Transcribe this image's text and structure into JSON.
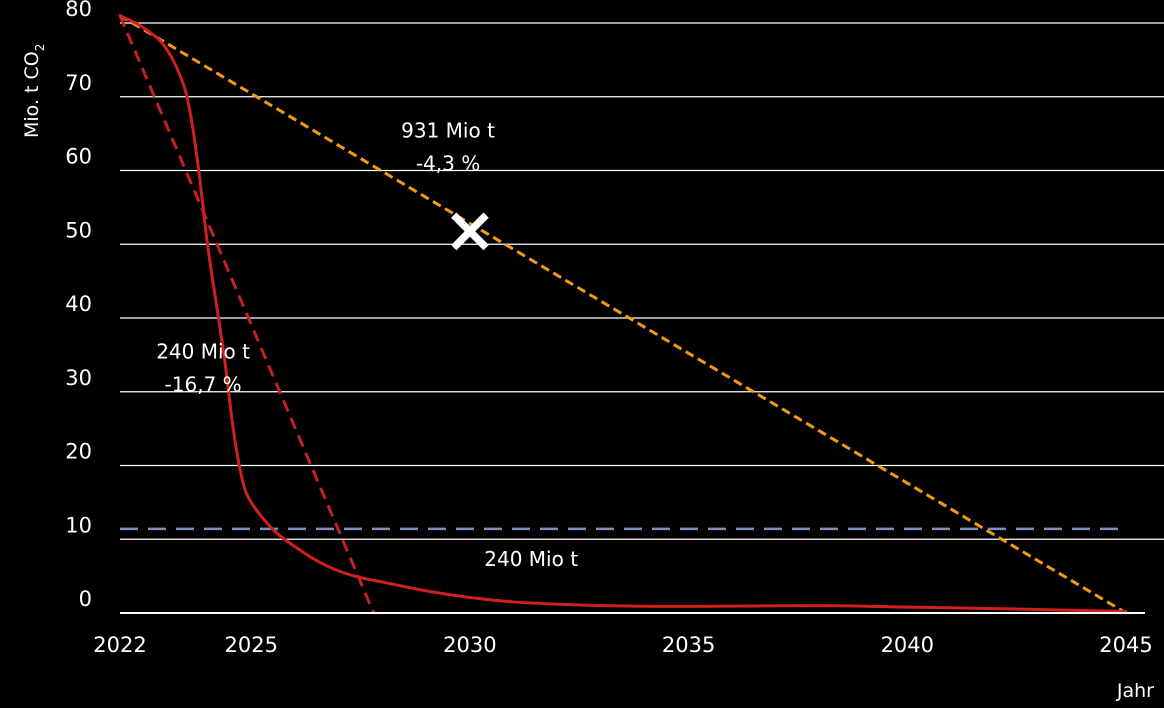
{
  "chart_data": {
    "type": "line",
    "xlabel": "Jahr",
    "ylabel": "Mio. t CO",
    "ylabel_subscript": "2",
    "xlim": [
      2022,
      2045
    ],
    "ylim": [
      0,
      80
    ],
    "xticks": [
      "2022",
      "2025",
      "2030",
      "2035",
      "2040",
      "2045"
    ],
    "yticks": [
      "0",
      "10",
      "20",
      "30",
      "40",
      "50",
      "60",
      "70",
      "80"
    ],
    "grid": "horizontal",
    "series": [
      {
        "style": "solid",
        "color": "#d01f1f",
        "x": [
          2022,
          2022.5,
          2023,
          2023.4,
          2023.6,
          2023.8,
          2024,
          2024.2,
          2024.4,
          2024.6,
          2024.8,
          2025,
          2025.5,
          2026,
          2026.5,
          2027,
          2027.5,
          2028,
          2029,
          2030,
          2031,
          2032,
          2033,
          2035,
          2038,
          2040,
          2042,
          2045
        ],
        "y": [
          81,
          79.5,
          77,
          72.5,
          68,
          60,
          50,
          42,
          34,
          24.5,
          18,
          15,
          11.3,
          9,
          7.1,
          5.7,
          4.8,
          4.2,
          3,
          2.1,
          1.5,
          1.2,
          1,
          0.9,
          1,
          0.8,
          0.6,
          0.2
        ]
      },
      {
        "style": "dashed",
        "color": "#c42222",
        "x": [
          2022,
          2027.8
        ],
        "y": [
          81,
          0
        ]
      },
      {
        "style": "dashed",
        "color": "#f29a12",
        "x": [
          2022,
          2045
        ],
        "y": [
          81,
          0
        ]
      },
      {
        "style": "dashed",
        "color": "#7e8ec4",
        "x": [
          2022,
          2045
        ],
        "y": [
          11.4,
          11.4
        ]
      }
    ],
    "marker": {
      "symbol": "×",
      "x": 2030,
      "y": 52
    },
    "annotations": [
      {
        "lines": [
          "931 Mio t",
          "-4,3 %"
        ],
        "x": 2029.5,
        "y": 64.5
      },
      {
        "lines": [
          "240 Mio t",
          "-16,7 %"
        ],
        "x": 2023.9,
        "y": 34.5
      },
      {
        "lines": [
          "240 Mio t"
        ],
        "x": 2031.4,
        "y": 6.4
      }
    ]
  }
}
